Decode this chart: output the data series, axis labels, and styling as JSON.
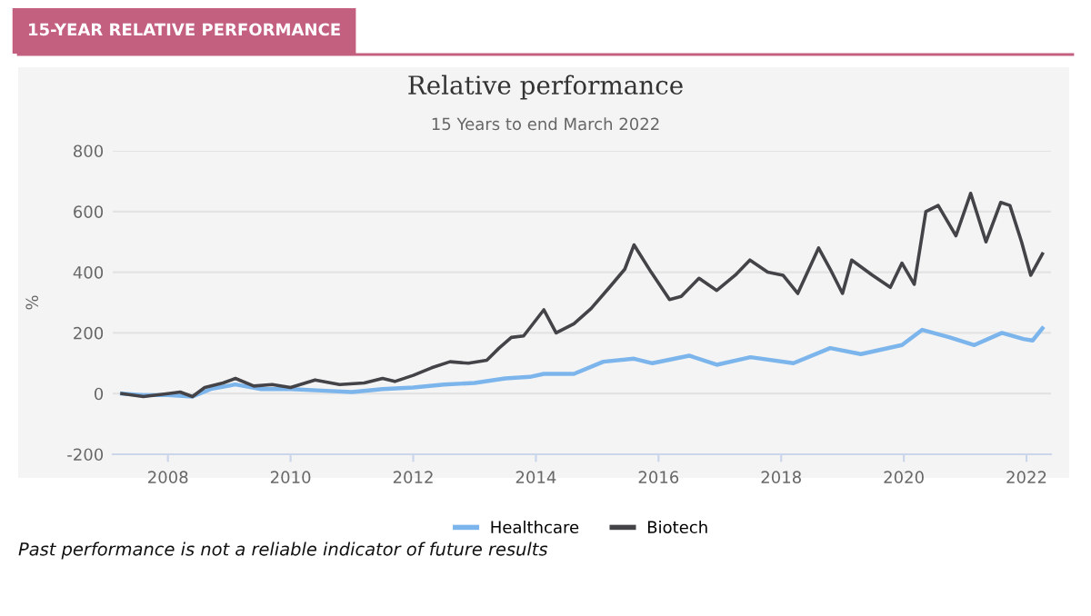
{
  "chart_data": {
    "type": "line",
    "title": "Relative performance",
    "subtitle": "15 Years to end March 2022",
    "ylabel": "%",
    "annotations": [
      "15-YEAR RELATIVE PERFORMANCE",
      "Past performance is not a reliable indicator of future results"
    ],
    "series": [
      {
        "name": "Healthcare",
        "color": "#7cb5ec",
        "x": [
          2007.25,
          2007.6,
          2008.0,
          2008.4,
          2008.7,
          2009.1,
          2009.5,
          2010.0,
          2010.5,
          2011.0,
          2011.5,
          2012.0,
          2012.5,
          2013.0,
          2013.5,
          2013.9,
          2014.13,
          2014.62,
          2015.1,
          2015.6,
          2015.9,
          2016.5,
          2016.95,
          2017.5,
          2018.2,
          2018.8,
          2019.3,
          2019.97,
          2020.3,
          2020.75,
          2021.15,
          2021.6,
          2021.95,
          2022.1,
          2022.26
        ],
        "values": [
          0,
          -5,
          -5,
          -10,
          15,
          30,
          15,
          15,
          10,
          5,
          15,
          20,
          30,
          35,
          50,
          55,
          65,
          65,
          105,
          115,
          100,
          125,
          95,
          120,
          100,
          150,
          130,
          160,
          210,
          185,
          160,
          200,
          180,
          175,
          215
        ]
      },
      {
        "name": "Biotech",
        "color": "#434348",
        "x": [
          2007.25,
          2007.6,
          2008.0,
          2008.2,
          2008.4,
          2008.6,
          2008.9,
          2009.1,
          2009.4,
          2009.7,
          2010.0,
          2010.4,
          2010.8,
          2011.2,
          2011.5,
          2011.7,
          2012.0,
          2012.3,
          2012.6,
          2012.9,
          2013.2,
          2013.4,
          2013.6,
          2013.8,
          2014.13,
          2014.33,
          2014.62,
          2014.9,
          2015.2,
          2015.45,
          2015.6,
          2015.88,
          2016.18,
          2016.37,
          2016.66,
          2016.95,
          2017.25,
          2017.49,
          2017.78,
          2018.03,
          2018.27,
          2018.61,
          2018.8,
          2019.0,
          2019.15,
          2019.49,
          2019.78,
          2019.97,
          2020.17,
          2020.36,
          2020.56,
          2020.85,
          2021.09,
          2021.34,
          2021.58,
          2021.73,
          2021.92,
          2022.07,
          2022.26
        ],
        "values": [
          0,
          -10,
          0,
          5,
          -10,
          20,
          35,
          50,
          25,
          30,
          20,
          45,
          30,
          35,
          50,
          40,
          60,
          85,
          105,
          100,
          110,
          150,
          185,
          190,
          276,
          200,
          230,
          280,
          350,
          410,
          490,
          400,
          310,
          320,
          380,
          340,
          390,
          440,
          400,
          390,
          330,
          480,
          410,
          330,
          440,
          390,
          350,
          430,
          360,
          600,
          620,
          520,
          660,
          500,
          630,
          620,
          500,
          390,
          460
        ]
      }
    ],
    "xlim": [
      2007.1,
      2022.4
    ],
    "xticks": [
      2008,
      2010,
      2012,
      2014,
      2016,
      2018,
      2020,
      2022
    ],
    "ylim": [
      -200,
      800
    ],
    "yticks": [
      -200,
      0,
      200,
      400,
      600,
      800
    ],
    "grid": "y",
    "legend": "bottom",
    "marker": "none",
    "line_style": "solid"
  }
}
